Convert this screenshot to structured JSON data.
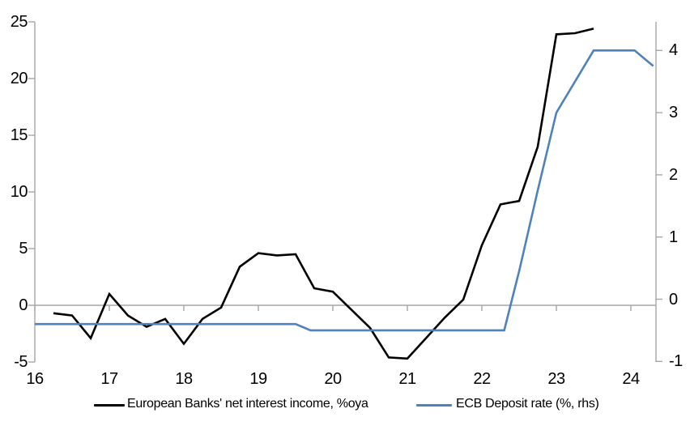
{
  "colors": {
    "background": "#ffffff",
    "axis": "#a6a6a6",
    "nii_line": "#000000",
    "deposit_line": "#4f81bd"
  },
  "chart_data": {
    "type": "line",
    "legend_position": "bottom",
    "x_axis": {
      "ticks": [
        16,
        17,
        18,
        19,
        20,
        21,
        22,
        23,
        24
      ],
      "range": [
        16,
        24.36
      ]
    },
    "left_axis": {
      "ticks": [
        25,
        20,
        15,
        10,
        5,
        0,
        -5
      ],
      "range": [
        -5,
        25
      ],
      "zero_line": true
    },
    "right_axis": {
      "ticks": [
        4,
        3,
        2,
        1,
        0,
        -1
      ],
      "range": [
        -1.1,
        4.45
      ]
    },
    "series": [
      {
        "name": "European Banks' net interest income, %oya",
        "axis": "left",
        "color": "#000000",
        "x": [
          16.25,
          16.5,
          16.75,
          17.0,
          17.25,
          17.5,
          17.75,
          18.0,
          18.25,
          18.5,
          18.75,
          19.0,
          19.25,
          19.5,
          19.75,
          20.0,
          20.25,
          20.5,
          20.75,
          21.0,
          21.25,
          21.5,
          21.75,
          22.0,
          22.25,
          22.5,
          22.75,
          23.0,
          23.25,
          23.5
        ],
        "y": [
          -0.7,
          -0.9,
          -2.9,
          1.0,
          -0.9,
          -1.9,
          -1.2,
          -3.4,
          -1.2,
          -0.2,
          3.4,
          4.6,
          4.4,
          4.5,
          1.5,
          1.2,
          -0.4,
          -2.0,
          -4.6,
          -4.7,
          -2.9,
          -1.1,
          0.5,
          5.3,
          8.9,
          9.2,
          14.0,
          23.9,
          24.0,
          24.4
        ]
      },
      {
        "name": "ECB Deposit rate (%, rhs)",
        "axis": "right",
        "color": "#4f81bd",
        "x": [
          16.0,
          19.5,
          19.7,
          22.3,
          22.5,
          22.75,
          23.0,
          23.25,
          23.5,
          24.05,
          24.3
        ],
        "y": [
          -0.4,
          -0.4,
          -0.5,
          -0.5,
          0.45,
          1.75,
          3.0,
          3.5,
          4.0,
          4.0,
          3.75
        ]
      }
    ]
  }
}
